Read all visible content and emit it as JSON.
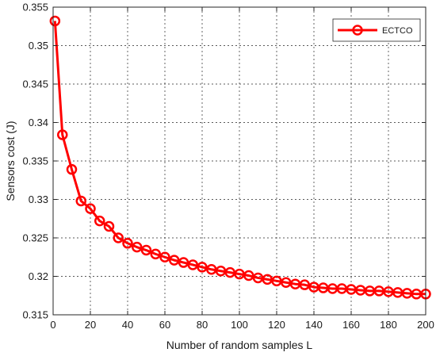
{
  "chart_data": {
    "type": "line",
    "title": "",
    "xlabel": "Number of random samples L",
    "ylabel": "Sensors cost (J)",
    "xlim": [
      0,
      200
    ],
    "ylim": [
      0.315,
      0.355
    ],
    "x_ticks": [
      "0",
      "20",
      "40",
      "60",
      "80",
      "100",
      "120",
      "140",
      "160",
      "180",
      "200"
    ],
    "y_ticks": [
      "0.315",
      "0.32",
      "0.325",
      "0.33",
      "0.335",
      "0.34",
      "0.345",
      "0.35",
      "0.355"
    ],
    "grid": true,
    "legend_position": "top-right",
    "series": [
      {
        "name": "ECTCO",
        "color": "#ff0000",
        "marker": "circle",
        "x": [
          1,
          5,
          10,
          15,
          20,
          25,
          30,
          35,
          40,
          45,
          50,
          55,
          60,
          65,
          70,
          75,
          80,
          85,
          90,
          95,
          100,
          105,
          110,
          115,
          120,
          125,
          130,
          135,
          140,
          145,
          150,
          155,
          160,
          165,
          170,
          175,
          180,
          185,
          190,
          195,
          200
        ],
        "y": [
          0.3532,
          0.3384,
          0.3339,
          0.3298,
          0.3288,
          0.3272,
          0.3265,
          0.325,
          0.3243,
          0.3238,
          0.3234,
          0.3229,
          0.3225,
          0.3221,
          0.3218,
          0.3215,
          0.3212,
          0.3209,
          0.3207,
          0.3205,
          0.3203,
          0.3201,
          0.3198,
          0.3196,
          0.3194,
          0.3192,
          0.319,
          0.3189,
          0.3186,
          0.3185,
          0.3184,
          0.3184,
          0.3183,
          0.3182,
          0.3181,
          0.3181,
          0.318,
          0.3179,
          0.3178,
          0.3177,
          0.3177
        ]
      }
    ]
  }
}
